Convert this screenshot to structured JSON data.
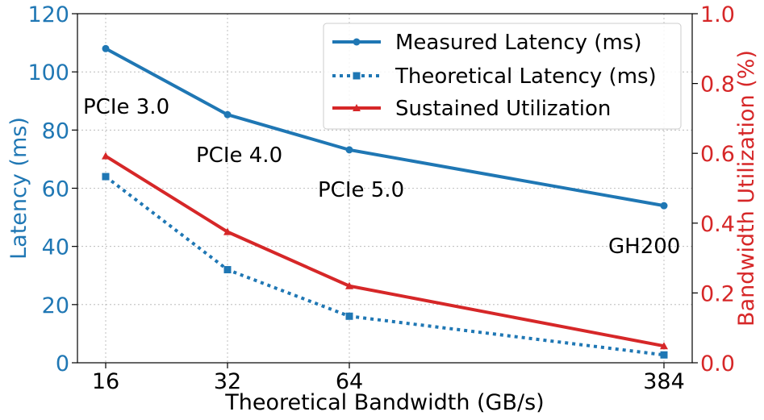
{
  "chart_data": {
    "type": "line",
    "x_categories": [
      "16",
      "32",
      "64",
      "384"
    ],
    "xlabel": "Theoretical Bandwidth (GB/s)",
    "ylabel_left": "Latency (ms)",
    "ylabel_right": "Bandwidth Utilization (%)",
    "ylim_left": [
      0,
      120
    ],
    "ylim_right": [
      0,
      1.0
    ],
    "yticks_left": [
      "0",
      "20",
      "40",
      "60",
      "80",
      "100",
      "120"
    ],
    "yticks_right": [
      "0.0",
      "0.2",
      "0.4",
      "0.6",
      "0.8",
      "1.0"
    ],
    "grid": true,
    "legend_position": "top-right",
    "series": [
      {
        "name": "Measured Latency (ms)",
        "axis": "left",
        "values": [
          108,
          85.3,
          73.2,
          54
        ],
        "color": "#1f77b4",
        "style": "solid",
        "marker": "circle"
      },
      {
        "name": "Theoretical Latency (ms)",
        "axis": "left",
        "values": [
          64,
          32,
          16,
          2.7
        ],
        "color": "#1f77b4",
        "style": "dotted",
        "marker": "square"
      },
      {
        "name": "Sustained Utilization",
        "axis": "right",
        "values": [
          0.592,
          0.375,
          0.22,
          0.048
        ],
        "color": "#d62728",
        "style": "solid",
        "marker": "triangle"
      }
    ],
    "annotations": [
      "PCIe 3.0",
      "PCIe 4.0",
      "PCIe 5.0",
      "GH200"
    ],
    "colors": {
      "left_axis": "#1f77b4",
      "right_axis": "#d62728"
    }
  }
}
